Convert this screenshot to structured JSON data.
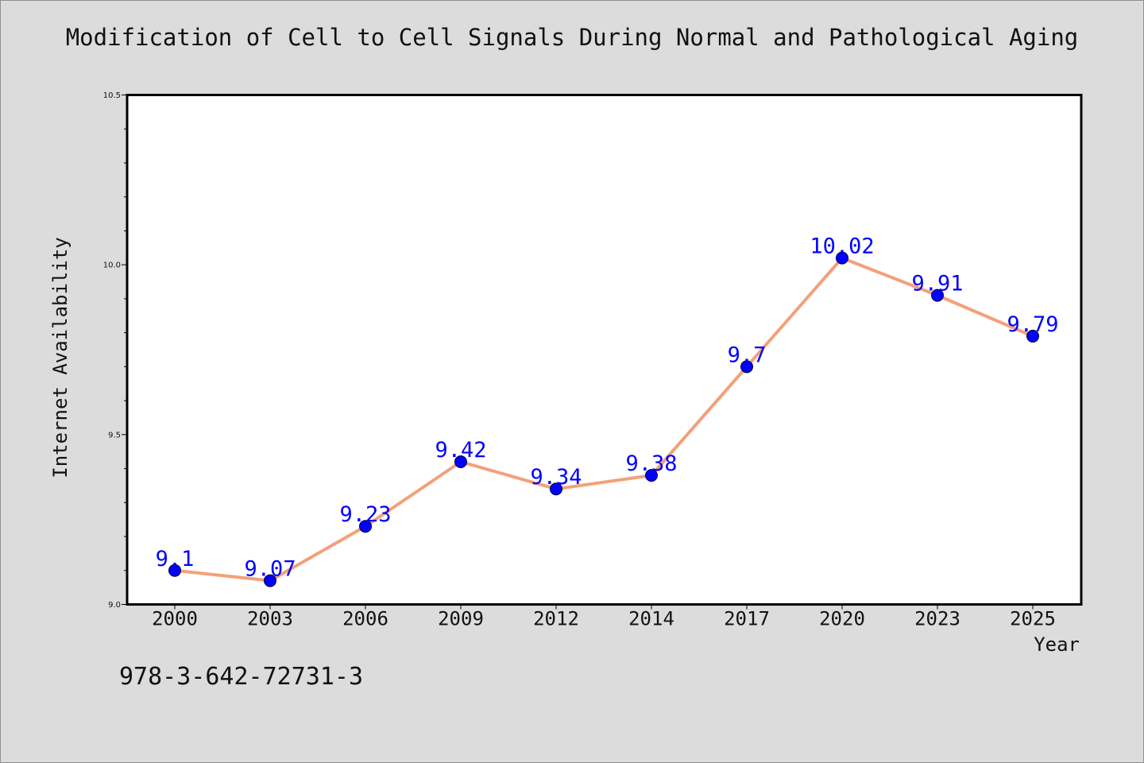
{
  "chart_data": {
    "type": "line",
    "title": "Modification of Cell to Cell Signals During Normal and Pathological Aging",
    "xlabel": "Year",
    "ylabel": "Internet Availability",
    "categories": [
      "2000",
      "2003",
      "2006",
      "2009",
      "2012",
      "2014",
      "2017",
      "2020",
      "2023",
      "2025"
    ],
    "series": [
      {
        "values": [
          9.1,
          9.07,
          9.23,
          9.42,
          9.34,
          9.38,
          9.7,
          10.02,
          9.91,
          9.79
        ],
        "line_color": "#f4a07a",
        "marker_color": "#0000ff"
      }
    ],
    "data_labels": [
      "9.1",
      "9.07",
      "9.23",
      "9.42",
      "9.34",
      "9.38",
      "9.7",
      "10.02",
      "9.91",
      "9.79"
    ],
    "data_label_color": "#0000ff",
    "ylim": [
      9.0,
      10.5
    ],
    "y_major_ticks": [
      "9.0",
      "9.5",
      "10.0",
      "10.5"
    ],
    "grid": false,
    "legend": "none"
  },
  "annotation": {
    "isbn": "978-3-642-72731-3"
  }
}
